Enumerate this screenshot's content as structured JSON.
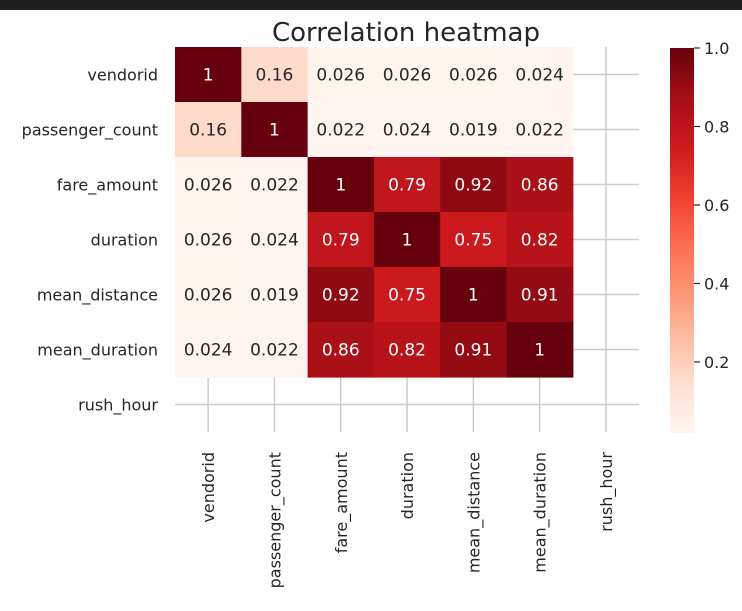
{
  "chart_data": {
    "type": "heatmap",
    "title": "Correlation heatmap",
    "xlabel": "",
    "ylabel": "",
    "rows": [
      "vendorid",
      "passenger_count",
      "fare_amount",
      "duration",
      "mean_distance",
      "mean_duration",
      "rush_hour"
    ],
    "columns": [
      "vendorid",
      "passenger_count",
      "fare_amount",
      "duration",
      "mean_distance",
      "mean_duration",
      "rush_hour"
    ],
    "values": [
      [
        1,
        0.16,
        0.026,
        0.026,
        0.026,
        0.024,
        null
      ],
      [
        0.16,
        1,
        0.022,
        0.024,
        0.019,
        0.022,
        null
      ],
      [
        0.026,
        0.022,
        1,
        0.79,
        0.92,
        0.86,
        null
      ],
      [
        0.026,
        0.024,
        0.79,
        1,
        0.75,
        0.82,
        null
      ],
      [
        0.026,
        0.019,
        0.92,
        0.75,
        1,
        0.91,
        null
      ],
      [
        0.024,
        0.022,
        0.86,
        0.82,
        0.91,
        1,
        null
      ],
      [
        null,
        null,
        null,
        null,
        null,
        null,
        null
      ]
    ],
    "labels": [
      [
        "1",
        "0.16",
        "0.026",
        "0.026",
        "0.026",
        "0.024",
        ""
      ],
      [
        "0.16",
        "1",
        "0.022",
        "0.024",
        "0.019",
        "0.022",
        ""
      ],
      [
        "0.026",
        "0.022",
        "1",
        "0.79",
        "0.92",
        "0.86",
        ""
      ],
      [
        "0.026",
        "0.024",
        "0.79",
        "1",
        "0.75",
        "0.82",
        ""
      ],
      [
        "0.026",
        "0.019",
        "0.92",
        "0.75",
        "1",
        "0.91",
        ""
      ],
      [
        "0.024",
        "0.022",
        "0.86",
        "0.82",
        "0.91",
        "1",
        ""
      ],
      [
        "",
        "",
        "",
        "",
        "",
        "",
        ""
      ]
    ],
    "colormap": "Reds",
    "colorbar": {
      "range": [
        0.019,
        1.0
      ],
      "ticks": [
        0.2,
        0.4,
        0.6,
        0.8,
        1.0
      ],
      "tick_labels": [
        "0.2",
        "0.4",
        "0.6",
        "0.8",
        "1.0"
      ]
    },
    "grid": true,
    "colors": {
      "gridline": "#cccccc",
      "text_dark": "#262626",
      "text_light": "#ffffff",
      "top_bar": "#1f1f1f"
    }
  }
}
